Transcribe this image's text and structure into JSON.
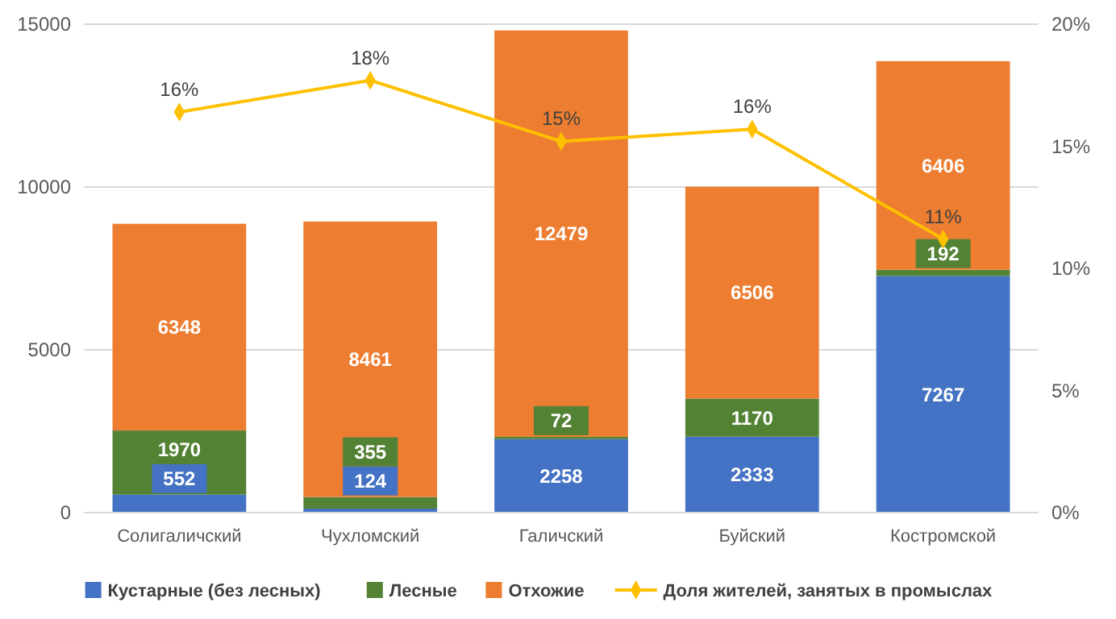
{
  "chart_data": {
    "type": "bar",
    "stacked": true,
    "categories": [
      "Солигаличский",
      "Чухломский",
      "Галичский",
      "Буйский",
      "Костромской"
    ],
    "series": [
      {
        "name": "Кустарные (без лесных)",
        "color": "#4472c4",
        "values": [
          552,
          124,
          2258,
          2333,
          7267
        ]
      },
      {
        "name": "Лесные",
        "color": "#548235",
        "values": [
          1970,
          355,
          72,
          1170,
          192
        ]
      },
      {
        "name": "Отхожие",
        "color": "#ed7d31",
        "values": [
          6348,
          8461,
          12479,
          6506,
          6406
        ]
      },
      {
        "name": "Доля жителей, занятых в промыслах",
        "type": "line",
        "axis": "y2",
        "color": "#ffc000",
        "marker": "diamond",
        "values": [
          16.4,
          17.7,
          15.2,
          15.7,
          11.2
        ],
        "value_labels": [
          "16%",
          "18%",
          "15%",
          "16%",
          "11%"
        ]
      }
    ],
    "ylim": [
      0,
      15000
    ],
    "yticks": [
      0,
      5000,
      10000,
      15000
    ],
    "y2lim": [
      0,
      20
    ],
    "y2ticks": [
      {
        "value": 0,
        "label": "0%"
      },
      {
        "value": 5,
        "label": "5%"
      },
      {
        "value": 10,
        "label": "10%"
      },
      {
        "value": 15,
        "label": "15%"
      },
      {
        "value": 20,
        "label": "20%"
      }
    ],
    "grid": "y",
    "legend": "bottom",
    "data_labels": true
  }
}
